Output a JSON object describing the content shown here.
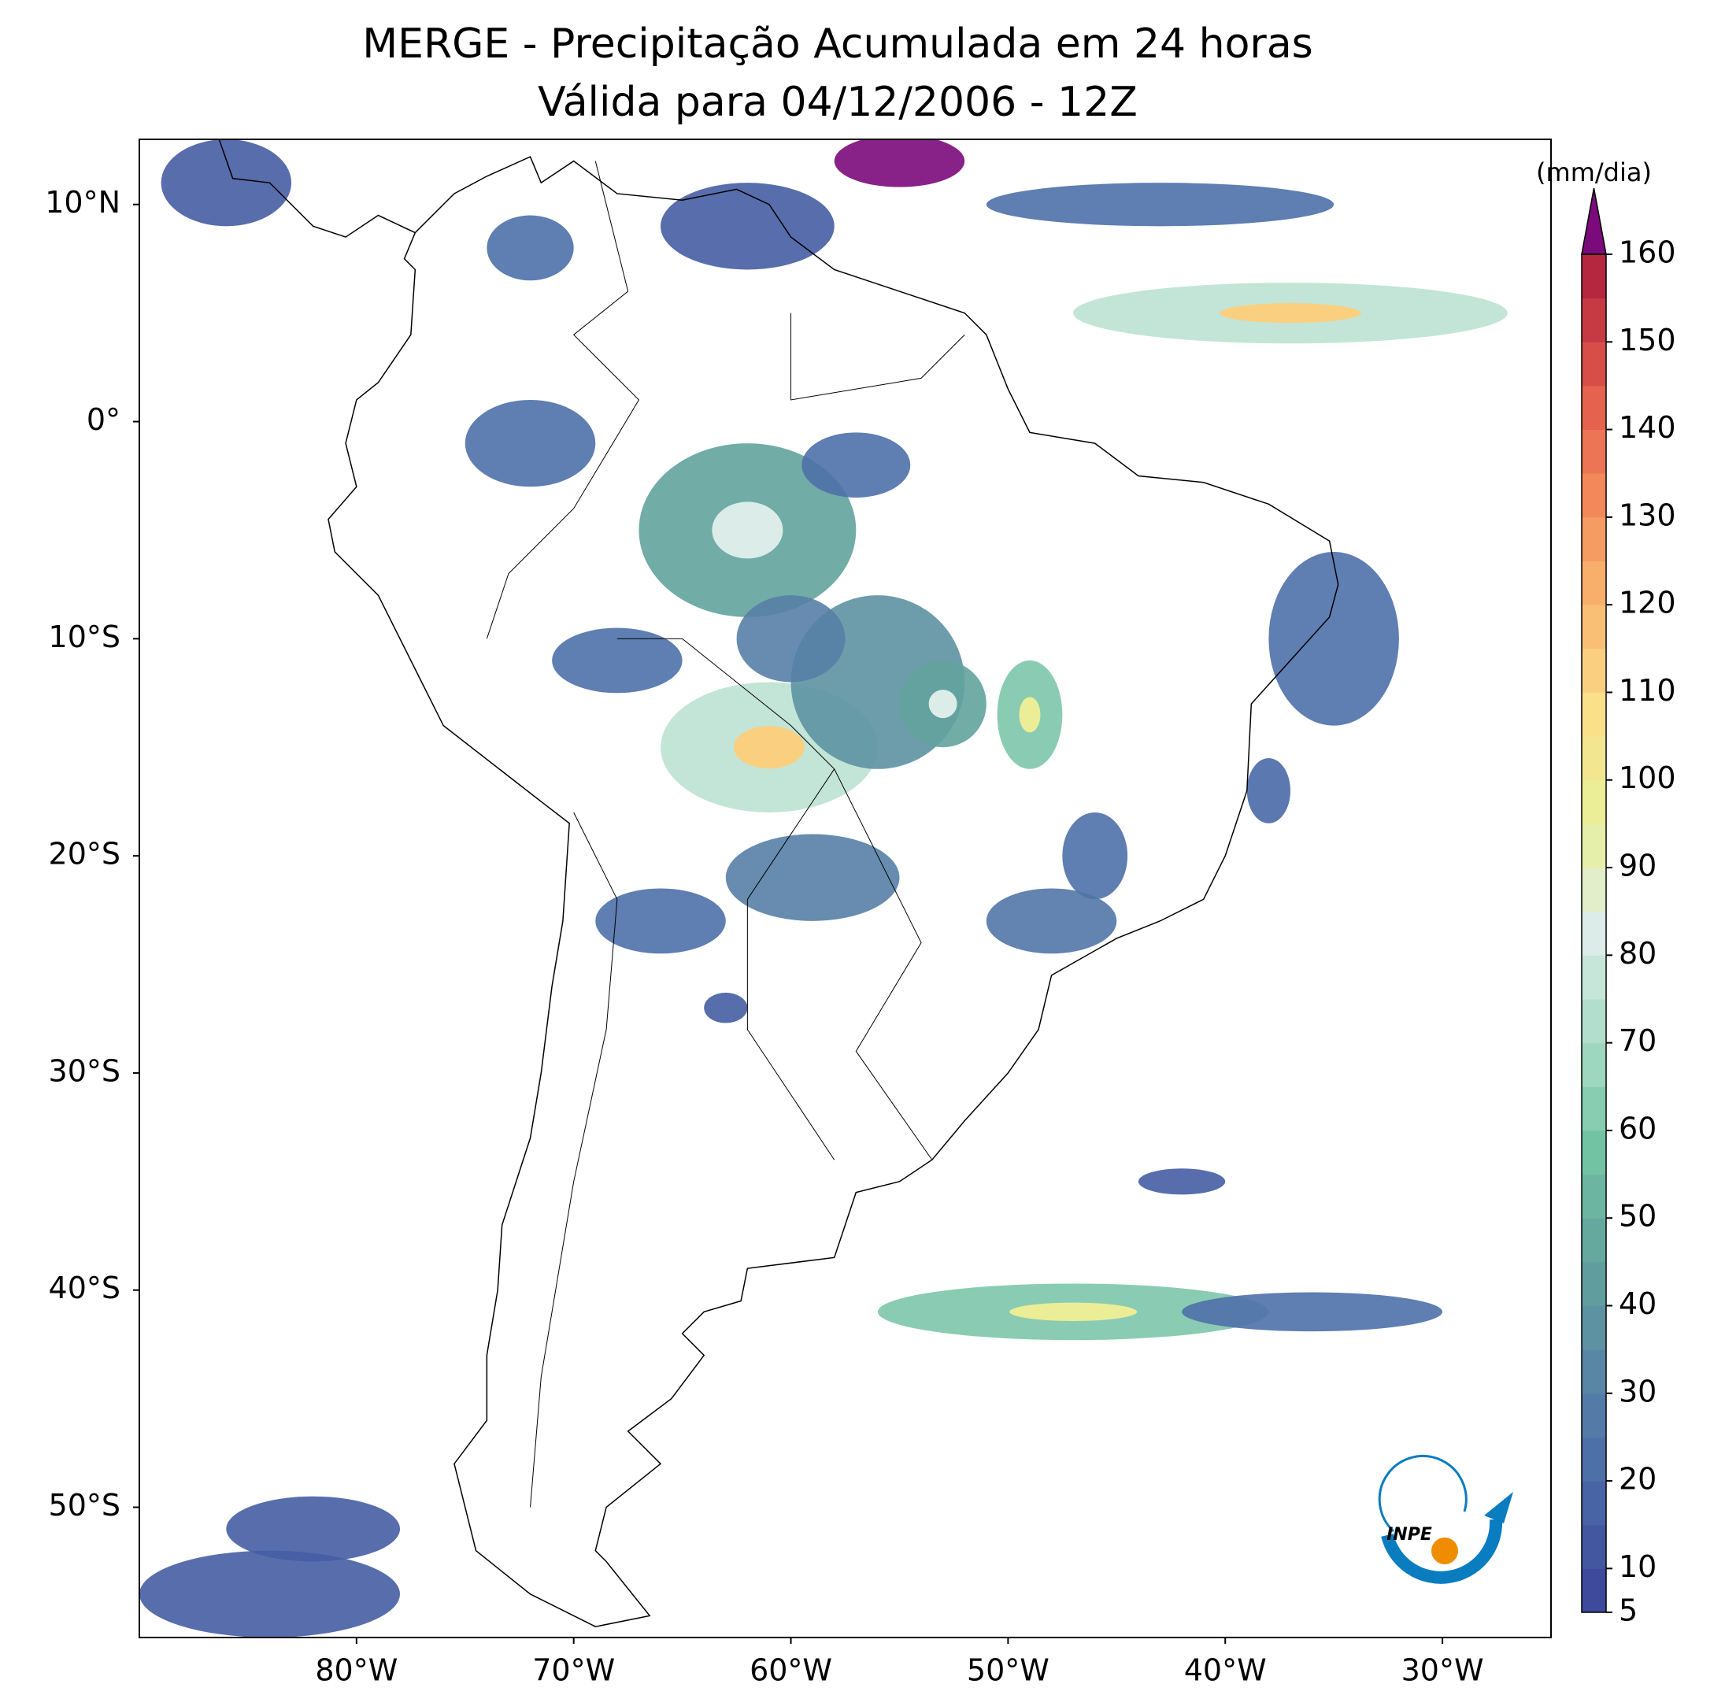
{
  "map": {
    "title": [
      "MERGE - Precipitação Acumulada em 24 horas",
      "Válida para 04/12/2006 - 12Z"
    ],
    "lonlim": [
      -90,
      -25
    ],
    "latlim": [
      -56,
      13
    ],
    "xticks": [
      {
        "value": -80,
        "label": "80°W"
      },
      {
        "value": -70,
        "label": "70°W"
      },
      {
        "value": -60,
        "label": "60°W"
      },
      {
        "value": -50,
        "label": "50°W"
      },
      {
        "value": -40,
        "label": "40°W"
      },
      {
        "value": -30,
        "label": "30°W"
      }
    ],
    "yticks": [
      {
        "value": 10,
        "label": "10°N"
      },
      {
        "value": 0,
        "label": "0°"
      },
      {
        "value": -10,
        "label": "10°S"
      },
      {
        "value": -20,
        "label": "20°S"
      },
      {
        "value": -30,
        "label": "30°S"
      },
      {
        "value": -40,
        "label": "40°S"
      },
      {
        "value": -50,
        "label": "50°S"
      }
    ]
  },
  "colorbar": {
    "label": "(mm/dia)",
    "lim": [
      5,
      160
    ],
    "ticks": [
      5,
      10,
      20,
      30,
      40,
      50,
      60,
      70,
      80,
      90,
      100,
      110,
      120,
      130,
      140,
      150,
      160
    ],
    "colors": [
      "#3e4a9b",
      "#4b6aa8",
      "#5a86a6",
      "#62a39d",
      "#72c2a4",
      "#a8dcc6",
      "#dcece8",
      "#e8f09a",
      "#fbe08a",
      "#f9b870",
      "#f3895a",
      "#e0584b",
      "#b5263f"
    ],
    "extend_color": "#7b0a7b"
  },
  "logo": "INPE"
}
